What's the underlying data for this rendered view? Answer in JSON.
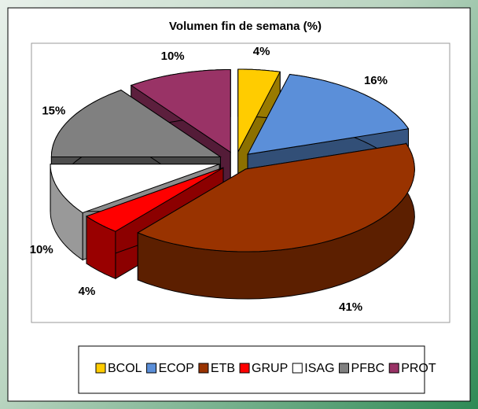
{
  "chart_data": {
    "type": "pie",
    "title": "Volumen fin de semana (%)",
    "categories": [
      "BCOL",
      "ECOP",
      "ETB",
      "GRUP",
      "ISAG",
      "PFBC",
      "PROT"
    ],
    "values": [
      4,
      16,
      41,
      4,
      10,
      15,
      10
    ],
    "value_labels": [
      "4%",
      "16%",
      "41%",
      "4%",
      "10%",
      "15%",
      "10%"
    ],
    "colors": [
      "#ffcc00",
      "#5b8fd9",
      "#993300",
      "#ff0000",
      "#ffffff",
      "#808080",
      "#993366"
    ],
    "legend": "bottom"
  }
}
